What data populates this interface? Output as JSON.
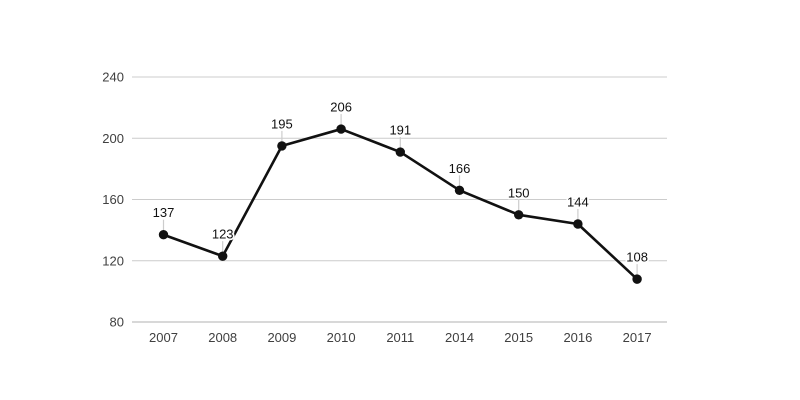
{
  "chart_data": {
    "type": "line",
    "categories": [
      "2007",
      "2008",
      "2009",
      "2010",
      "2011",
      "2014",
      "2015",
      "2016",
      "2017"
    ],
    "values": [
      137,
      123,
      195,
      206,
      191,
      166,
      150,
      144,
      108
    ],
    "point_labels": [
      "137",
      "123",
      "195",
      "206",
      "191",
      "166",
      "150",
      "144",
      "108"
    ],
    "ylim": [
      80,
      240
    ],
    "yticks": [
      80,
      120,
      160,
      200,
      240
    ],
    "grid": "horizontal",
    "legend": "none",
    "colors": {
      "background": "#ffffff",
      "line": "#111111",
      "marker": "#111111",
      "gridline": "#cccccc",
      "axis_line": "#b0b0b0",
      "axis_text": "#404040",
      "point_label_text": "#111111",
      "leader_line": "#cccccc",
      "label_halo": "#ffffff"
    }
  }
}
